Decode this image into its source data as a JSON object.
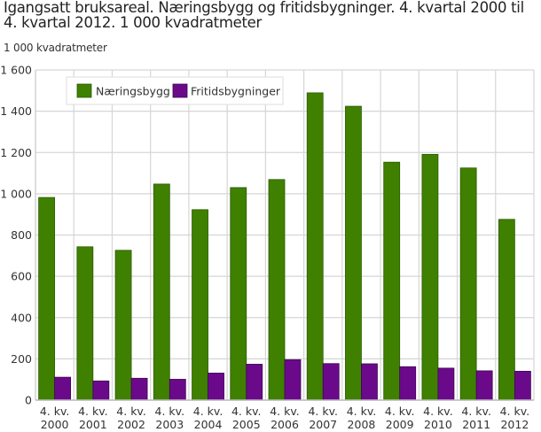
{
  "title": "Igangsatt bruksareal. Næringsbygg og fritidsbygninger. 4. kvartal 2000 til 4. kvartal 2012. 1 000 kvadratmeter",
  "title_line1": "Igangsatt bruksareal. Næringsbygg og fritidsbygninger. 4. kvartal 2000 til",
  "title_line2": "4. kvartal 2012. 1 000 kvadratmeter",
  "unit_label": "1 000 kvadratmeter",
  "colors": {
    "naeringsbygg": "#3f8000",
    "fritidsbygninger": "#6a0a8a",
    "grid": "#d6d6d6"
  },
  "chart_data": {
    "type": "bar",
    "title": "Igangsatt bruksareal. Næringsbygg og fritidsbygninger. 4. kvartal 2000 til 4. kvartal 2012. 1 000 kvadratmeter",
    "xlabel": "",
    "ylabel": "1 000 kvadratmeter",
    "ylim": [
      0,
      1600
    ],
    "yticks": [
      0,
      200,
      400,
      600,
      800,
      1000,
      1200,
      1400,
      1600
    ],
    "ytick_labels": [
      "0",
      "200",
      "400",
      "600",
      "800",
      "1 000",
      "1 200",
      "1 400",
      "1 600"
    ],
    "grid": true,
    "legend_position": "top-left inside",
    "categories": [
      [
        "4. kv.",
        "2000"
      ],
      [
        "4. kv.",
        "2001"
      ],
      [
        "4. kv.",
        "2002"
      ],
      [
        "4. kv.",
        "2003"
      ],
      [
        "4. kv.",
        "2004"
      ],
      [
        "4. kv.",
        "2005"
      ],
      [
        "4. kv.",
        "2006"
      ],
      [
        "4. kv.",
        "2007"
      ],
      [
        "4. kv.",
        "2008"
      ],
      [
        "4. kv.",
        "2009"
      ],
      [
        "4. kv.",
        "2010"
      ],
      [
        "4. kv.",
        "2011"
      ],
      [
        "4. kv.",
        "2012"
      ]
    ],
    "series": [
      {
        "name": "Næringsbygg",
        "color": "#3f8000",
        "values": [
          982,
          743,
          726,
          1047,
          923,
          1030,
          1069,
          1489,
          1424,
          1153,
          1191,
          1125,
          876
        ]
      },
      {
        "name": "Fritidsbygninger",
        "color": "#6a0a8a",
        "values": [
          111,
          93,
          106,
          101,
          131,
          174,
          196,
          177,
          176,
          162,
          155,
          142,
          140
        ]
      }
    ]
  }
}
